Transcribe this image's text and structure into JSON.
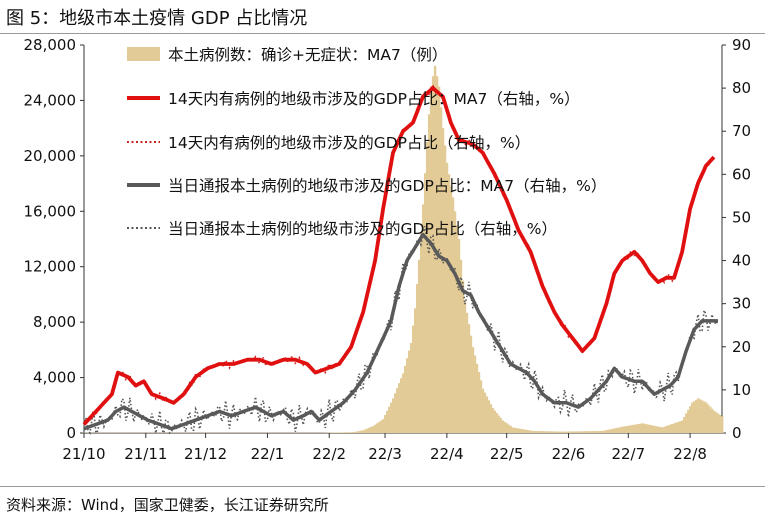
{
  "title": "图 5：地级市本土疫情 GDP 占比情况",
  "source": "资料来源：Wind，国家卫健委，长江证券研究所",
  "chart_data": {
    "type": "line",
    "x_tick_labels": [
      "21/10",
      "21/11",
      "21/12",
      "22/1",
      "22/2",
      "22/3",
      "22/4",
      "22/5",
      "22/6",
      "22/7",
      "22/8"
    ],
    "x_tick_pos": [
      0,
      31,
      61,
      92,
      123,
      151,
      182,
      212,
      243,
      273,
      304
    ],
    "x_range": [
      0,
      320
    ],
    "left_axis": {
      "range": [
        0,
        28000
      ],
      "ticks": [
        "0",
        "4,000",
        "8,000",
        "12,000",
        "16,000",
        "20,000",
        "24,000",
        "28,000"
      ]
    },
    "right_axis": {
      "range": [
        0,
        90
      ],
      "ticks": [
        "0",
        "10",
        "20",
        "30",
        "40",
        "50",
        "60",
        "70",
        "80",
        "90"
      ]
    },
    "legend": [
      "本土病例数：确诊+无症状：MA7（例）",
      "14天内有病例的地级市涉及的GDP占比：MA7（右轴，%）",
      "14天内有病例的地级市涉及的GDP占比（右轴，%）",
      "当日通报本土病例的地级市涉及的GDP占比：MA7（右轴，%）",
      "当日通报本土病例的地级市涉及的GDP占比（右轴，%）"
    ],
    "colors": {
      "cases": "#e3cb97",
      "red": "#e01010",
      "gray": "#595959",
      "red_dot": "#cc2222",
      "gray_dot": "#555555"
    },
    "series": [
      {
        "name": "本土病例数：确诊+无症状：MA7（例）",
        "axis": "left",
        "style": "bar",
        "points": [
          [
            0,
            20
          ],
          [
            120,
            20
          ],
          [
            135,
            60
          ],
          [
            140,
            200
          ],
          [
            145,
            500
          ],
          [
            150,
            1000
          ],
          [
            155,
            2500
          ],
          [
            158,
            3600
          ],
          [
            160,
            4300
          ],
          [
            164,
            6500
          ],
          [
            166,
            9000
          ],
          [
            168,
            12500
          ],
          [
            170,
            16500
          ],
          [
            172,
            21000
          ],
          [
            174,
            25000
          ],
          [
            176,
            26500
          ],
          [
            178,
            25000
          ],
          [
            180,
            22000
          ],
          [
            182,
            19500
          ],
          [
            185,
            17000
          ],
          [
            188,
            14000
          ],
          [
            191,
            9500
          ],
          [
            195,
            6200
          ],
          [
            200,
            3200
          ],
          [
            205,
            1800
          ],
          [
            210,
            900
          ],
          [
            215,
            400
          ],
          [
            225,
            150
          ],
          [
            240,
            100
          ],
          [
            260,
            150
          ],
          [
            270,
            450
          ],
          [
            280,
            700
          ],
          [
            290,
            400
          ],
          [
            300,
            900
          ],
          [
            305,
            2200
          ],
          [
            308,
            2500
          ],
          [
            312,
            2200
          ],
          [
            316,
            1600
          ],
          [
            320,
            1200
          ]
        ]
      },
      {
        "name": "14天内有病例的地级市涉及的GDP占比：MA7（右轴，%）",
        "axis": "right",
        "style": "thick",
        "points": [
          [
            0,
            2
          ],
          [
            8,
            6
          ],
          [
            14,
            9
          ],
          [
            17,
            14
          ],
          [
            22,
            13
          ],
          [
            26,
            11
          ],
          [
            30,
            12
          ],
          [
            34,
            9
          ],
          [
            40,
            8
          ],
          [
            45,
            7
          ],
          [
            50,
            9
          ],
          [
            56,
            13
          ],
          [
            62,
            15
          ],
          [
            68,
            16
          ],
          [
            75,
            16
          ],
          [
            82,
            17
          ],
          [
            88,
            17
          ],
          [
            94,
            16
          ],
          [
            100,
            17
          ],
          [
            106,
            17
          ],
          [
            112,
            16
          ],
          [
            116,
            14
          ],
          [
            122,
            15
          ],
          [
            128,
            16
          ],
          [
            134,
            20
          ],
          [
            140,
            28
          ],
          [
            146,
            40
          ],
          [
            150,
            52
          ],
          [
            155,
            65
          ],
          [
            160,
            70
          ],
          [
            165,
            72
          ],
          [
            170,
            78
          ],
          [
            175,
            80
          ],
          [
            180,
            78
          ],
          [
            184,
            72
          ],
          [
            188,
            68
          ],
          [
            195,
            67
          ],
          [
            200,
            65
          ],
          [
            206,
            60
          ],
          [
            212,
            54
          ],
          [
            218,
            47
          ],
          [
            224,
            42
          ],
          [
            230,
            34
          ],
          [
            236,
            28
          ],
          [
            240,
            25
          ],
          [
            245,
            22
          ],
          [
            250,
            19
          ],
          [
            256,
            22
          ],
          [
            262,
            30
          ],
          [
            266,
            37
          ],
          [
            270,
            40
          ],
          [
            276,
            42
          ],
          [
            280,
            40
          ],
          [
            284,
            37
          ],
          [
            288,
            35
          ],
          [
            292,
            36
          ],
          [
            296,
            36
          ],
          [
            300,
            42
          ],
          [
            304,
            52
          ],
          [
            308,
            58
          ],
          [
            312,
            62
          ],
          [
            316,
            64
          ]
        ]
      },
      {
        "name": "当日通报本土病例的地级市涉及的GDP占比：MA7（右轴，%）",
        "axis": "right",
        "style": "thick",
        "points": [
          [
            0,
            1
          ],
          [
            6,
            2
          ],
          [
            12,
            3
          ],
          [
            16,
            5
          ],
          [
            20,
            6
          ],
          [
            24,
            5
          ],
          [
            28,
            4
          ],
          [
            32,
            3
          ],
          [
            38,
            2
          ],
          [
            44,
            1
          ],
          [
            50,
            2
          ],
          [
            56,
            3
          ],
          [
            62,
            4
          ],
          [
            68,
            5
          ],
          [
            74,
            4
          ],
          [
            80,
            5
          ],
          [
            86,
            6
          ],
          [
            90,
            5
          ],
          [
            94,
            4
          ],
          [
            100,
            5
          ],
          [
            105,
            3
          ],
          [
            110,
            4
          ],
          [
            114,
            5
          ],
          [
            118,
            3
          ],
          [
            124,
            5
          ],
          [
            130,
            7
          ],
          [
            136,
            10
          ],
          [
            142,
            14
          ],
          [
            148,
            20
          ],
          [
            154,
            26
          ],
          [
            158,
            34
          ],
          [
            162,
            40
          ],
          [
            166,
            43
          ],
          [
            170,
            46
          ],
          [
            174,
            44
          ],
          [
            178,
            41
          ],
          [
            182,
            40
          ],
          [
            186,
            37
          ],
          [
            190,
            33
          ],
          [
            194,
            32
          ],
          [
            198,
            28
          ],
          [
            202,
            25
          ],
          [
            206,
            22
          ],
          [
            210,
            19
          ],
          [
            214,
            16
          ],
          [
            218,
            15
          ],
          [
            222,
            14
          ],
          [
            226,
            12
          ],
          [
            230,
            9
          ],
          [
            236,
            7
          ],
          [
            242,
            7
          ],
          [
            248,
            6
          ],
          [
            254,
            8
          ],
          [
            258,
            10
          ],
          [
            262,
            12
          ],
          [
            266,
            15
          ],
          [
            270,
            13
          ],
          [
            276,
            12
          ],
          [
            280,
            12
          ],
          [
            286,
            9
          ],
          [
            290,
            10
          ],
          [
            294,
            11
          ],
          [
            298,
            13
          ],
          [
            302,
            19
          ],
          [
            306,
            24
          ],
          [
            310,
            26
          ],
          [
            314,
            26
          ],
          [
            318,
            26
          ]
        ]
      },
      {
        "name": "14天内有病例的地级市涉及的GDP占比（右轴，%）",
        "axis": "right",
        "style": "dotted",
        "derived_from": 2,
        "offset": 0.9
      },
      {
        "name": "当日通报本土病例的地级市涉及的GDP占比（右轴，%）",
        "axis": "right",
        "style": "dotted",
        "derived_from": 3,
        "offset": 3.2
      }
    ]
  }
}
